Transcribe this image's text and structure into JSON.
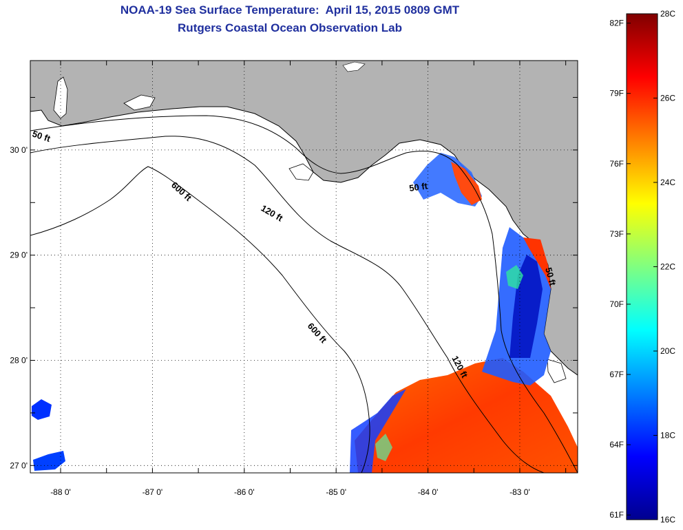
{
  "title": {
    "line1": "NOAA-19 Sea Surface Temperature:  April 15, 2015 0809 GMT",
    "line2": "Rutgers Coastal Ocean Observation Lab"
  },
  "map": {
    "lon_range": [
      -88.33,
      -82.37
    ],
    "lat_range": [
      26.93,
      30.85
    ],
    "lon_ticks": [
      {
        "value": -88,
        "label": "-88 0'"
      },
      {
        "value": -87,
        "label": "-87 0'"
      },
      {
        "value": -86,
        "label": "-86 0'"
      },
      {
        "value": -85,
        "label": "-85 0'"
      },
      {
        "value": -84,
        "label": "-84 0'"
      },
      {
        "value": -83,
        "label": "-83 0'"
      }
    ],
    "lat_ticks": [
      {
        "value": 30,
        "label": "30 0'"
      },
      {
        "value": 29,
        "label": "29 0'"
      },
      {
        "value": 28,
        "label": "28 0'"
      },
      {
        "value": 27,
        "label": "27 0'"
      }
    ],
    "grid": "dotted",
    "land_color": "#b3b3b3",
    "contour_labels": [
      {
        "id": "c50",
        "text": "50 ft"
      },
      {
        "id": "c600a",
        "text": "600 ft"
      },
      {
        "id": "c120a",
        "text": "120 ft"
      },
      {
        "id": "c600b",
        "text": "600 ft"
      },
      {
        "id": "c120b",
        "text": "120 ft"
      },
      {
        "id": "c50b",
        "text": "50 ft"
      },
      {
        "id": "c50c",
        "text": "50 ft"
      }
    ]
  },
  "colorbar": {
    "min_c": 16,
    "max_c": 28,
    "fahrenheit_labels": [
      "82F",
      "79F",
      "76F",
      "73F",
      "70F",
      "67F",
      "64F",
      "61F"
    ],
    "celsius_labels": [
      "28C",
      "26C",
      "24C",
      "22C",
      "20C",
      "18C",
      "16C"
    ],
    "colormap": "jet",
    "stops": [
      "#00008f",
      "#0000ff",
      "#0080ff",
      "#00ffff",
      "#80ff80",
      "#ffff00",
      "#ff8000",
      "#ff0000",
      "#800000"
    ]
  }
}
